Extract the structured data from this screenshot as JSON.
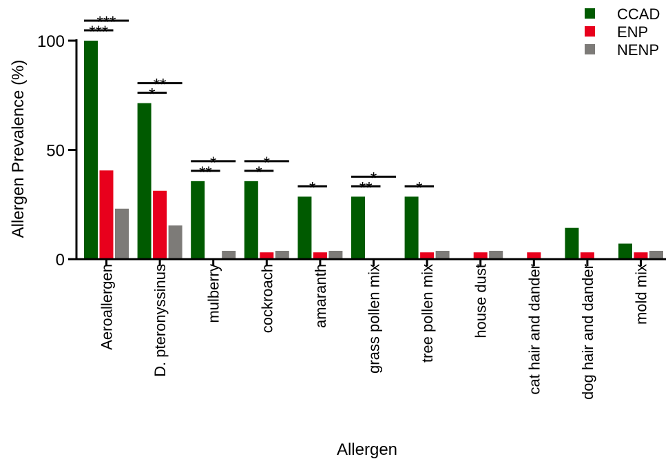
{
  "chart_data": {
    "type": "bar",
    "title": "",
    "xlabel": "Allergen",
    "ylabel": "Allergen Prevalence (%)",
    "ylim": [
      0,
      100
    ],
    "yticks": [
      0,
      50,
      100
    ],
    "grid": false,
    "legend_position": "top-right",
    "categories": [
      "Aeroallergen",
      "D. pteronyssinus",
      "mulberry",
      "cockroach",
      "amaranth",
      "grass pollen mix",
      "tree pollen mix",
      "house dust",
      "cat hair and dander",
      "dog hair and dander",
      "mold mix"
    ],
    "series": [
      {
        "name": "CCAD",
        "color": "#005a00",
        "values": [
          100,
          71.4,
          35.7,
          35.7,
          28.6,
          28.6,
          28.6,
          0,
          0,
          14.3,
          7.1
        ]
      },
      {
        "name": "ENP",
        "color": "#e8001c",
        "values": [
          40.6,
          31.3,
          0,
          3.1,
          3.1,
          0,
          3.1,
          3.1,
          3.1,
          3.1,
          3.1
        ]
      },
      {
        "name": "NENP",
        "color": "#7d7b78",
        "values": [
          23.1,
          15.4,
          3.8,
          3.8,
          3.8,
          0,
          3.8,
          3.8,
          0,
          0,
          3.8
        ]
      }
    ],
    "annotations": [
      {
        "category": 0,
        "from": "CCAD",
        "to": "ENP",
        "label": "***",
        "level": 1
      },
      {
        "category": 0,
        "from": "CCAD",
        "to": "NENP",
        "label": "***",
        "level": 2
      },
      {
        "category": 1,
        "from": "CCAD",
        "to": "ENP",
        "label": "*",
        "level": 1
      },
      {
        "category": 1,
        "from": "CCAD",
        "to": "NENP",
        "label": "**",
        "level": 2
      },
      {
        "category": 2,
        "from": "CCAD",
        "to": "ENP",
        "label": "**",
        "level": 1
      },
      {
        "category": 2,
        "from": "CCAD",
        "to": "NENP",
        "label": "*",
        "level": 2
      },
      {
        "category": 3,
        "from": "CCAD",
        "to": "ENP",
        "label": "*",
        "level": 1
      },
      {
        "category": 3,
        "from": "CCAD",
        "to": "NENP",
        "label": "*",
        "level": 2
      },
      {
        "category": 4,
        "from": "CCAD",
        "to": "ENP",
        "label": "*",
        "level": 1
      },
      {
        "category": 5,
        "from": "CCAD",
        "to": "ENP",
        "label": "**",
        "level": 1
      },
      {
        "category": 5,
        "from": "CCAD",
        "to": "NENP",
        "label": "*",
        "level": 2
      },
      {
        "category": 6,
        "from": "CCAD",
        "to": "ENP",
        "label": "*",
        "level": 1
      }
    ]
  }
}
